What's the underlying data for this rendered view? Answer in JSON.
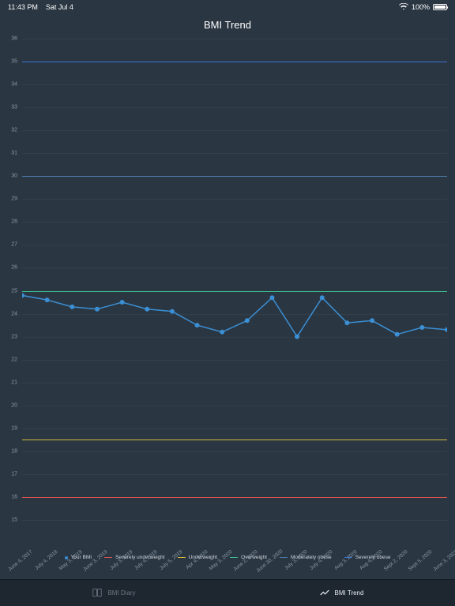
{
  "status": {
    "time": "11:43 PM",
    "date": "Sat Jul 4",
    "wifi_icon": "wifi",
    "battery_pct": "100%"
  },
  "title": "BMI Trend",
  "chart": {
    "type": "line",
    "y_min": 15,
    "y_max": 36,
    "y_step": 1,
    "x_labels": [
      "June 4, 2017",
      "July 4, 2018",
      "May 3, 2019",
      "June 3, 2019",
      "July 3, 2019",
      "July 4, 2019",
      "July 5, 2019",
      "Apr 4, 2020",
      "May 3, 2020",
      "June 2, 2020",
      "June 30, 2020",
      "July 3, 2020",
      "July 4, 2020",
      "Aug 3, 2020",
      "Aug 4, 2020",
      "Sept 2, 2020",
      "Sept 5, 2020",
      "June 3, 2021"
    ],
    "series": {
      "name": "Your BMI",
      "color": "#3b8fd4",
      "marker_radius": 3,
      "line_width": 1.5,
      "values": [
        24.8,
        24.6,
        24.3,
        24.2,
        24.5,
        24.2,
        24.1,
        23.5,
        23.2,
        23.7,
        24.7,
        23.0,
        24.7,
        23.6,
        23.7,
        23.1,
        23.4,
        23.3
      ]
    },
    "ref_lines": [
      {
        "name": "Severely underweight",
        "value": 16.0,
        "color": "#d9534f"
      },
      {
        "name": "Underweight",
        "value": 18.5,
        "color": "#d4b93b"
      },
      {
        "name": "Overweight",
        "value": 25.0,
        "color": "#3bbf8f"
      },
      {
        "name": "Moderately obese",
        "value": 30.0,
        "color": "#4a7aa8"
      },
      {
        "name": "Severely obese",
        "value": 35.0,
        "color": "#3b6fd4"
      }
    ],
    "grid_color": "#333f4b",
    "axis_label_color": "#8a9aa8",
    "background_color": "#2a3642"
  },
  "legend": [
    {
      "kind": "dot",
      "color": "#3b8fd4",
      "label": "Your BMI"
    },
    {
      "kind": "line",
      "color": "#d9534f",
      "label": "Severely underweight"
    },
    {
      "kind": "line",
      "color": "#d4b93b",
      "label": "Underweight"
    },
    {
      "kind": "line",
      "color": "#3bbf8f",
      "label": "Overweight"
    },
    {
      "kind": "line",
      "color": "#4a7aa8",
      "label": "Moderately obese"
    },
    {
      "kind": "line",
      "color": "#3b6fd4",
      "label": "Severely obese"
    }
  ],
  "tabs": [
    {
      "label": "BMI Diary",
      "active": false
    },
    {
      "label": "BMI Trend",
      "active": true
    }
  ]
}
